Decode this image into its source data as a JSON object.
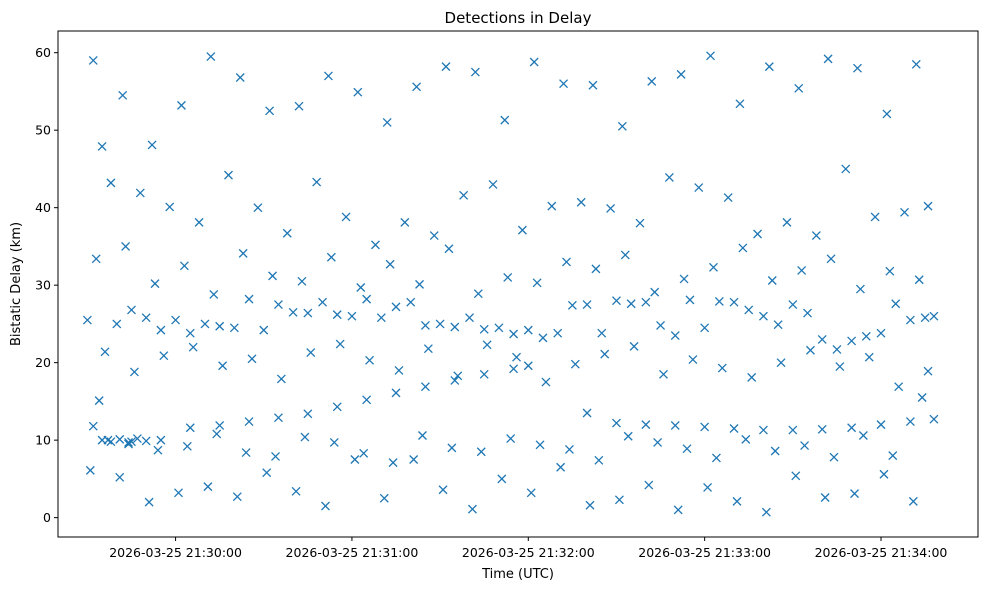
{
  "chart_data": {
    "type": "scatter",
    "title": "Detections in Delay",
    "xlabel": "Time (UTC)",
    "ylabel": "Bistatic Delay (km)",
    "marker": "x",
    "color": "#1f77b4",
    "grid": false,
    "x_tick_labels": [
      "2026-03-25 21:30:00",
      "2026-03-25 21:31:00",
      "2026-03-25 21:32:00",
      "2026-03-25 21:33:00",
      "2026-03-25 21:34:00"
    ],
    "y_ticks": [
      0,
      10,
      20,
      30,
      40,
      50,
      60
    ],
    "xlim": [
      "2026-03-25 21:29:20",
      "2026-03-25 21:34:33"
    ],
    "ylim": [
      -2.5,
      62.8
    ],
    "series": [
      {
        "name": "",
        "x": [
          "2026-03-25 21:29:32",
          "2026-03-25 21:29:37",
          "2026-03-25 21:29:45",
          "2026-03-25 21:29:55",
          "2026-03-25 21:30:05",
          "2026-03-25 21:30:15",
          "2026-03-25 21:30:25",
          "2026-03-25 21:30:35",
          "2026-03-25 21:30:45",
          "2026-03-25 21:30:55",
          "2026-03-25 21:31:05",
          "2026-03-25 21:31:15",
          "2026-03-25 21:31:25",
          "2026-03-25 21:31:35",
          "2026-03-25 21:31:45",
          "2026-03-25 21:31:55",
          "2026-03-25 21:32:00",
          "2026-03-25 21:32:20",
          "2026-03-25 21:32:30",
          "2026-03-25 21:32:40",
          "2026-03-25 21:32:50",
          "2026-03-25 21:33:00",
          "2026-03-25 21:33:10",
          "2026-03-25 21:33:20",
          "2026-03-25 21:33:30",
          "2026-03-25 21:33:40",
          "2026-03-25 21:33:50",
          "2026-03-25 21:34:00",
          "2026-03-25 21:34:10",
          "2026-03-25 21:34:18",
          "2026-03-25 21:29:30",
          "2026-03-25 21:29:40",
          "2026-03-25 21:29:50",
          "2026-03-25 21:30:00",
          "2026-03-25 21:30:10",
          "2026-03-25 21:30:20",
          "2026-03-25 21:30:30",
          "2026-03-25 21:30:40",
          "2026-03-25 21:30:50",
          "2026-03-25 21:31:00",
          "2026-03-25 21:31:10",
          "2026-03-25 21:31:20",
          "2026-03-25 21:31:30",
          "2026-03-25 21:31:40",
          "2026-03-25 21:31:50",
          "2026-03-25 21:32:00",
          "2026-03-25 21:32:10",
          "2026-03-25 21:32:20",
          "2026-03-25 21:32:30",
          "2026-03-25 21:32:40",
          "2026-03-25 21:32:50",
          "2026-03-25 21:33:00",
          "2026-03-25 21:33:10",
          "2026-03-25 21:33:20",
          "2026-03-25 21:33:30",
          "2026-03-25 21:33:40",
          "2026-03-25 21:33:50",
          "2026-03-25 21:34:00",
          "2026-03-25 21:34:10",
          "2026-03-25 21:34:18",
          "2026-03-25 21:29:35",
          "2026-03-25 21:29:45",
          "2026-03-25 21:29:55",
          "2026-03-25 21:30:05",
          "2026-03-25 21:30:15",
          "2026-03-25 21:30:25",
          "2026-03-25 21:30:35",
          "2026-03-25 21:30:45",
          "2026-03-25 21:30:55",
          "2026-03-25 21:31:05",
          "2026-03-25 21:31:15",
          "2026-03-25 21:31:25",
          "2026-03-25 21:31:35",
          "2026-03-25 21:31:45",
          "2026-03-25 21:31:55",
          "2026-03-25 21:32:05",
          "2026-03-25 21:32:15",
          "2026-03-25 21:32:25",
          "2026-03-25 21:32:35",
          "2026-03-25 21:32:45",
          "2026-03-25 21:32:55",
          "2026-03-25 21:33:05",
          "2026-03-25 21:33:15",
          "2026-03-25 21:33:25",
          "2026-03-25 21:33:35",
          "2026-03-25 21:33:45",
          "2026-03-25 21:33:55",
          "2026-03-25 21:34:05",
          "2026-03-25 21:34:15",
          "2026-03-25 21:29:32",
          "2026-03-25 21:29:42",
          "2026-03-25 21:29:52",
          "2026-03-25 21:30:02",
          "2026-03-25 21:30:12",
          "2026-03-25 21:30:22",
          "2026-03-25 21:30:32",
          "2026-03-25 21:30:42",
          "2026-03-25 21:30:52",
          "2026-03-25 21:31:02",
          "2026-03-25 21:31:12",
          "2026-03-25 21:31:22",
          "2026-03-25 21:31:32",
          "2026-03-25 21:31:42",
          "2026-03-25 21:31:52",
          "2026-03-25 21:32:02",
          "2026-03-25 21:32:12",
          "2026-03-25 21:32:22",
          "2026-03-25 21:32:32",
          "2026-03-25 21:32:42",
          "2026-03-25 21:32:52",
          "2026-03-25 21:33:02",
          "2026-03-25 21:33:12",
          "2026-03-25 21:33:22",
          "2026-03-25 21:33:32",
          "2026-03-25 21:33:42",
          "2026-03-25 21:33:52",
          "2026-03-25 21:34:02",
          "2026-03-25 21:34:12",
          "2026-03-25 21:29:38",
          "2026-03-25 21:29:48",
          "2026-03-25 21:29:58",
          "2026-03-25 21:30:08",
          "2026-03-25 21:30:18",
          "2026-03-25 21:30:28",
          "2026-03-25 21:30:38",
          "2026-03-25 21:30:48",
          "2026-03-25 21:30:58",
          "2026-03-25 21:31:08",
          "2026-03-25 21:31:18",
          "2026-03-25 21:31:28",
          "2026-03-25 21:31:38",
          "2026-03-25 21:31:48",
          "2026-03-25 21:31:58",
          "2026-03-25 21:32:08",
          "2026-03-25 21:32:18",
          "2026-03-25 21:32:28",
          "2026-03-25 21:32:38",
          "2026-03-25 21:32:48",
          "2026-03-25 21:32:58",
          "2026-03-25 21:33:08",
          "2026-03-25 21:33:18",
          "2026-03-25 21:33:28",
          "2026-03-25 21:33:38",
          "2026-03-25 21:33:48",
          "2026-03-25 21:33:58",
          "2026-03-25 21:34:08",
          "2026-03-25 21:34:16",
          "2026-03-25 21:29:33",
          "2026-03-25 21:29:43",
          "2026-03-25 21:29:53",
          "2026-03-25 21:30:03",
          "2026-03-25 21:30:13",
          "2026-03-25 21:30:23",
          "2026-03-25 21:30:33",
          "2026-03-25 21:30:43",
          "2026-03-25 21:30:53",
          "2026-03-25 21:31:03",
          "2026-03-25 21:31:13",
          "2026-03-25 21:31:23",
          "2026-03-25 21:31:33",
          "2026-03-25 21:31:43",
          "2026-03-25 21:31:53",
          "2026-03-25 21:32:03",
          "2026-03-25 21:32:13",
          "2026-03-25 21:32:23",
          "2026-03-25 21:32:33",
          "2026-03-25 21:32:43",
          "2026-03-25 21:32:53",
          "2026-03-25 21:33:03",
          "2026-03-25 21:33:13",
          "2026-03-25 21:33:23",
          "2026-03-25 21:33:33",
          "2026-03-25 21:33:43",
          "2026-03-25 21:33:53",
          "2026-03-25 21:34:03",
          "2026-03-25 21:34:13",
          "2026-03-25 21:29:36",
          "2026-03-25 21:29:46",
          "2026-03-25 21:29:56",
          "2026-03-25 21:30:06",
          "2026-03-25 21:30:16",
          "2026-03-25 21:30:26",
          "2026-03-25 21:30:36",
          "2026-03-25 21:30:46",
          "2026-03-25 21:30:56",
          "2026-03-25 21:31:06",
          "2026-03-25 21:31:16",
          "2026-03-25 21:31:26",
          "2026-03-25 21:31:36",
          "2026-03-25 21:31:46",
          "2026-03-25 21:31:56",
          "2026-03-25 21:32:06",
          "2026-03-25 21:32:16",
          "2026-03-25 21:32:26",
          "2026-03-25 21:32:36",
          "2026-03-25 21:32:46",
          "2026-03-25 21:32:56",
          "2026-03-25 21:33:06",
          "2026-03-25 21:33:16",
          "2026-03-25 21:33:26",
          "2026-03-25 21:33:36",
          "2026-03-25 21:33:46",
          "2026-03-25 21:33:56",
          "2026-03-25 21:34:06",
          "2026-03-25 21:34:16",
          "2026-03-25 21:29:31",
          "2026-03-25 21:29:41",
          "2026-03-25 21:29:51",
          "2026-03-25 21:30:01",
          "2026-03-25 21:30:11",
          "2026-03-25 21:30:21",
          "2026-03-25 21:30:31",
          "2026-03-25 21:30:41",
          "2026-03-25 21:30:51",
          "2026-03-25 21:31:01",
          "2026-03-25 21:31:11",
          "2026-03-25 21:31:21",
          "2026-03-25 21:31:31",
          "2026-03-25 21:31:41",
          "2026-03-25 21:31:51",
          "2026-03-25 21:32:01",
          "2026-03-25 21:32:11",
          "2026-03-25 21:32:21",
          "2026-03-25 21:32:31",
          "2026-03-25 21:32:41",
          "2026-03-25 21:32:51",
          "2026-03-25 21:33:01",
          "2026-03-25 21:33:11",
          "2026-03-25 21:33:21",
          "2026-03-25 21:33:31",
          "2026-03-25 21:33:41",
          "2026-03-25 21:33:51",
          "2026-03-25 21:34:01",
          "2026-03-25 21:34:11",
          "2026-03-25 21:29:34",
          "2026-03-25 21:29:44",
          "2026-03-25 21:29:54",
          "2026-03-25 21:30:04",
          "2026-03-25 21:30:14",
          "2026-03-25 21:30:24",
          "2026-03-25 21:30:34",
          "2026-03-25 21:30:44",
          "2026-03-25 21:30:54",
          "2026-03-25 21:31:04",
          "2026-03-25 21:31:14",
          "2026-03-25 21:31:24",
          "2026-03-25 21:31:34",
          "2026-03-25 21:31:44",
          "2026-03-25 21:31:54",
          "2026-03-25 21:32:04",
          "2026-03-25 21:32:14",
          "2026-03-25 21:32:24",
          "2026-03-25 21:32:34",
          "2026-03-25 21:32:44",
          "2026-03-25 21:32:54",
          "2026-03-25 21:33:04",
          "2026-03-25 21:33:14",
          "2026-03-25 21:33:24",
          "2026-03-25 21:33:34",
          "2026-03-25 21:33:44",
          "2026-03-25 21:33:54",
          "2026-03-25 21:34:04",
          "2026-03-25 21:34:14",
          "2026-03-25 21:29:35",
          "2026-03-25 21:29:38",
          "2026-03-25 21:29:41",
          "2026-03-25 21:29:44",
          "2026-03-25 21:29:47",
          "2026-03-25 21:29:50"
        ],
        "y": [
          11.8,
          10.0,
          9.8,
          10.0,
          11.6,
          11.9,
          12.4,
          12.9,
          13.4,
          14.3,
          15.2,
          16.1,
          16.9,
          17.7,
          18.5,
          19.2,
          19.6,
          13.5,
          12.2,
          12.0,
          11.9,
          11.7,
          11.5,
          11.3,
          11.3,
          11.4,
          11.6,
          12.0,
          12.4,
          12.7,
          25.5,
          25.0,
          25.8,
          25.5,
          25.0,
          24.5,
          24.2,
          26.5,
          27.8,
          26.0,
          25.8,
          27.8,
          25.0,
          25.8,
          24.5,
          24.2,
          23.8,
          27.5,
          28.0,
          27.8,
          23.5,
          24.5,
          27.8,
          26.0,
          27.5,
          23.0,
          22.8,
          23.8,
          25.5,
          26.0,
          47.9,
          26.8,
          24.2,
          23.8,
          24.7,
          28.2,
          27.5,
          26.4,
          26.2,
          28.2,
          27.2,
          24.8,
          24.6,
          24.3,
          23.7,
          23.2,
          27.4,
          23.8,
          27.6,
          24.8,
          28.1,
          27.9,
          26.8,
          24.9,
          26.4,
          21.7,
          23.4,
          27.6,
          25.8,
          59.0,
          54.5,
          48.1,
          53.2,
          59.5,
          56.8,
          52.5,
          53.1,
          57.0,
          54.9,
          51.0,
          55.6,
          58.2,
          57.5,
          51.3,
          58.8,
          56.0,
          55.8,
          50.5,
          56.3,
          57.2,
          59.6,
          53.4,
          58.2,
          55.4,
          59.2,
          58.0,
          52.1,
          58.5,
          43.2,
          41.9,
          40.1,
          38.1,
          44.2,
          40.0,
          36.7,
          43.3,
          38.8,
          35.2,
          38.1,
          36.4,
          41.6,
          43.0,
          37.1,
          40.2,
          40.7,
          39.9,
          38.0,
          43.9,
          42.6,
          41.3,
          36.6,
          38.1,
          36.4,
          45.0,
          38.8,
          39.4,
          40.2,
          33.4,
          35.0,
          30.2,
          32.5,
          28.8,
          34.1,
          31.2,
          30.5,
          33.6,
          29.7,
          32.7,
          30.1,
          34.7,
          28.9,
          31.0,
          30.3,
          33.0,
          32.1,
          33.9,
          29.1,
          30.8,
          32.3,
          34.8,
          30.6,
          31.9,
          33.4,
          29.5,
          31.8,
          30.7,
          21.4,
          18.8,
          20.9,
          22.0,
          19.6,
          20.5,
          17.9,
          21.3,
          22.4,
          20.3,
          19.0,
          21.8,
          18.3,
          22.3,
          20.7,
          17.5,
          19.8,
          21.1,
          22.1,
          18.5,
          20.4,
          19.3,
          18.1,
          20.0,
          21.6,
          19.5,
          20.7,
          16.9,
          18.9,
          6.1,
          5.2,
          2.0,
          3.2,
          4.0,
          2.7,
          5.8,
          3.4,
          1.5,
          7.5,
          2.5,
          7.5,
          3.6,
          1.1,
          5.0,
          3.2,
          6.5,
          1.6,
          2.3,
          4.2,
          1.0,
          3.9,
          2.1,
          0.7,
          5.4,
          2.6,
          3.1,
          5.6,
          2.1,
          15.1,
          9.5,
          8.7,
          9.2,
          10.8,
          8.4,
          7.9,
          10.4,
          9.7,
          8.3,
          7.1,
          10.6,
          9.0,
          8.5,
          10.2,
          9.4,
          8.8,
          7.4,
          10.5,
          9.7,
          8.9,
          7.7,
          10.1,
          8.6,
          9.3,
          7.8,
          10.6,
          8.0,
          15.5,
          10.0,
          9.8,
          10.1,
          9.7,
          10.2,
          9.9
        ]
      }
    ]
  }
}
